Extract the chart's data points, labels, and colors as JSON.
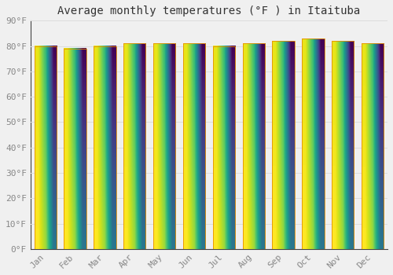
{
  "title": "Average monthly temperatures (°F ) in Itaituba",
  "months": [
    "Jan",
    "Feb",
    "Mar",
    "Apr",
    "May",
    "Jun",
    "Jul",
    "Aug",
    "Sep",
    "Oct",
    "Nov",
    "Dec"
  ],
  "values": [
    80,
    79,
    80,
    81,
    81,
    81,
    80,
    81,
    82,
    83,
    82,
    81
  ],
  "bar_color": "#F5A800",
  "bar_bottom_color": "#FFD966",
  "bar_edge_color": "#E89000",
  "background_color": "#F0F0F0",
  "plot_bg_color": "#F0F0F0",
  "ylim": [
    0,
    90
  ],
  "yticks": [
    0,
    10,
    20,
    30,
    40,
    50,
    60,
    70,
    80,
    90
  ],
  "ytick_labels": [
    "0°F",
    "10°F",
    "20°F",
    "30°F",
    "40°F",
    "50°F",
    "60°F",
    "70°F",
    "80°F",
    "90°F"
  ],
  "grid_color": "#DDDDDD",
  "title_fontsize": 10,
  "tick_fontsize": 8,
  "figsize": [
    5.0,
    3.5
  ],
  "dpi": 100
}
